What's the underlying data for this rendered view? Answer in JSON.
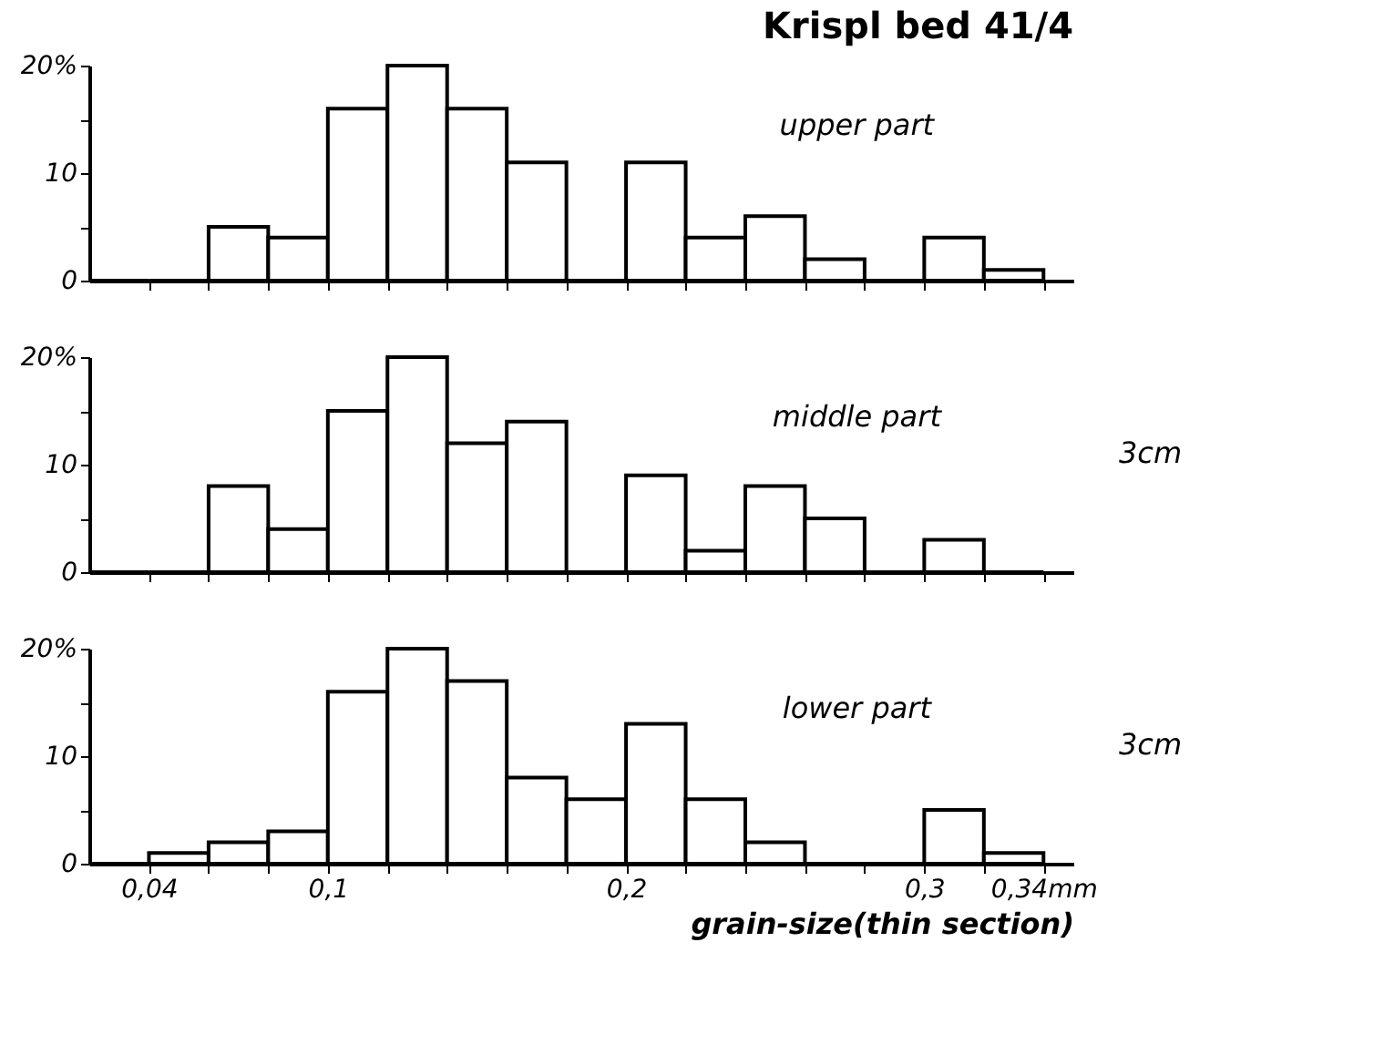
{
  "chart_data": [
    {
      "type": "histogram",
      "title": "Krispl bed 41/4",
      "annotations": [
        "upper part"
      ],
      "bins": [
        0.02,
        0.04,
        0.06,
        0.08,
        0.1,
        0.12,
        0.14,
        0.16,
        0.18,
        0.2,
        0.22,
        0.24,
        0.26,
        0.28,
        0.3,
        0.32,
        0.34
      ],
      "values": [
        0,
        0,
        5,
        4,
        16,
        20,
        16,
        11,
        0,
        11,
        4,
        6,
        2,
        0,
        4,
        1
      ],
      "xlim": [
        0.02,
        0.35
      ],
      "ylim": [
        0,
        20
      ],
      "xticks": [
        {
          "value": 0.04,
          "label": null
        },
        {
          "value": 0.06,
          "label": null
        },
        {
          "value": 0.08,
          "label": null
        },
        {
          "value": 0.1,
          "label": null
        },
        {
          "value": 0.12,
          "label": null
        },
        {
          "value": 0.14,
          "label": null
        },
        {
          "value": 0.16,
          "label": null
        },
        {
          "value": 0.18,
          "label": null
        },
        {
          "value": 0.2,
          "label": null
        },
        {
          "value": 0.22,
          "label": null
        },
        {
          "value": 0.24,
          "label": null
        },
        {
          "value": 0.26,
          "label": null
        },
        {
          "value": 0.28,
          "label": null
        },
        {
          "value": 0.3,
          "label": null
        },
        {
          "value": 0.32,
          "label": null
        },
        {
          "value": 0.34,
          "label": null
        }
      ],
      "yticks": [
        0,
        {
          "value": 5,
          "label": null
        },
        10,
        {
          "value": 15,
          "label": null
        },
        {
          "value": 20,
          "label": "20%"
        }
      ],
      "tick_labels": "y"
    },
    {
      "type": "histogram",
      "annotations": [
        "middle part",
        "3cm"
      ],
      "bins": [
        0.02,
        0.04,
        0.06,
        0.08,
        0.1,
        0.12,
        0.14,
        0.16,
        0.18,
        0.2,
        0.22,
        0.24,
        0.26,
        0.28,
        0.3,
        0.32,
        0.34
      ],
      "values": [
        0,
        0,
        8,
        4,
        15,
        20,
        12,
        14,
        0,
        9,
        2,
        8,
        5,
        0,
        3,
        0
      ],
      "xlim": [
        0.02,
        0.35
      ],
      "ylim": [
        0,
        20
      ],
      "xticks": [
        {
          "value": 0.04,
          "label": null
        },
        {
          "value": 0.06,
          "label": null
        },
        {
          "value": 0.08,
          "label": null
        },
        {
          "value": 0.1,
          "label": null
        },
        {
          "value": 0.12,
          "label": null
        },
        {
          "value": 0.14,
          "label": null
        },
        {
          "value": 0.16,
          "label": null
        },
        {
          "value": 0.18,
          "label": null
        },
        {
          "value": 0.2,
          "label": null
        },
        {
          "value": 0.22,
          "label": null
        },
        {
          "value": 0.24,
          "label": null
        },
        {
          "value": 0.26,
          "label": null
        },
        {
          "value": 0.28,
          "label": null
        },
        {
          "value": 0.3,
          "label": null
        },
        {
          "value": 0.32,
          "label": null
        },
        {
          "value": 0.34,
          "label": null
        }
      ],
      "yticks": [
        0,
        {
          "value": 5,
          "label": null
        },
        10,
        {
          "value": 15,
          "label": null
        },
        {
          "value": 20,
          "label": "20%"
        }
      ],
      "tick_labels": "y"
    },
    {
      "type": "histogram",
      "annotations": [
        "lower part",
        "3cm"
      ],
      "xlabel": "grain-size(thin section)",
      "bins": [
        0.02,
        0.04,
        0.06,
        0.08,
        0.1,
        0.12,
        0.14,
        0.16,
        0.18,
        0.2,
        0.22,
        0.24,
        0.26,
        0.28,
        0.3,
        0.32,
        0.34
      ],
      "values": [
        0,
        1,
        2,
        3,
        16,
        20,
        17,
        8,
        6,
        13,
        6,
        2,
        0,
        0,
        5,
        1
      ],
      "xlim": [
        0.02,
        0.35
      ],
      "ylim": [
        0,
        20
      ],
      "xticks": [
        {
          "value": 0.04,
          "label": "0,04"
        },
        {
          "value": 0.06,
          "label": null
        },
        {
          "value": 0.08,
          "label": null
        },
        {
          "value": 0.1,
          "label": "0,1"
        },
        {
          "value": 0.12,
          "label": null
        },
        {
          "value": 0.14,
          "label": null
        },
        {
          "value": 0.16,
          "label": null
        },
        {
          "value": 0.18,
          "label": null
        },
        {
          "value": 0.2,
          "label": "0,2"
        },
        {
          "value": 0.22,
          "label": null
        },
        {
          "value": 0.24,
          "label": null
        },
        {
          "value": 0.26,
          "label": null
        },
        {
          "value": 0.28,
          "label": null
        },
        {
          "value": 0.3,
          "label": "0,3"
        },
        {
          "value": 0.32,
          "label": null
        },
        {
          "value": 0.34,
          "label": "0,34mm"
        }
      ],
      "yticks": [
        0,
        {
          "value": 5,
          "label": null
        },
        10,
        {
          "value": 15,
          "label": null
        },
        {
          "value": 20,
          "label": "20%"
        }
      ]
    }
  ]
}
